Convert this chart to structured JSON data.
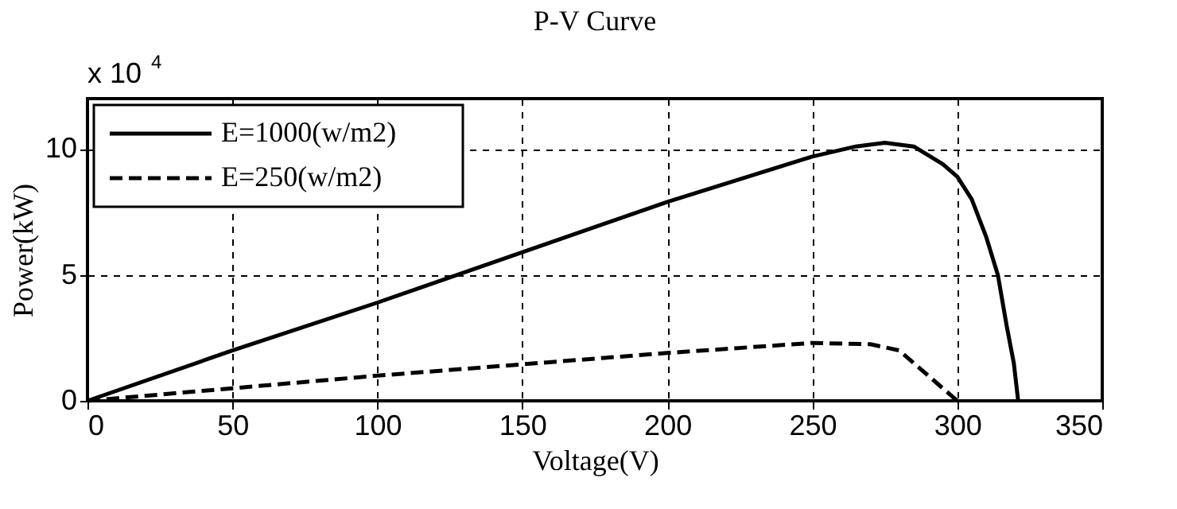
{
  "chart_data": {
    "type": "line",
    "title": "P-V Curve",
    "xlabel": "Voltage(V)",
    "ylabel": "Power(kW)",
    "annotations": [
      "x 10$^{4}$"
    ],
    "series": [
      {
        "name": "E=1000(w/m2)",
        "color": "#000000",
        "line_style": "solid",
        "x": [
          0,
          50,
          100,
          150,
          200,
          250,
          265,
          275,
          285,
          295,
          300,
          305,
          310,
          314,
          317,
          319.5,
          321
        ],
        "values": [
          0,
          2.0,
          3.9,
          5.9,
          7.9,
          9.7,
          10.1,
          10.25,
          10.1,
          9.4,
          8.9,
          8.0,
          6.5,
          5.0,
          3.0,
          1.5,
          0
        ]
      },
      {
        "name": "E=250(w/m2)",
        "color": "#000000",
        "line_style": "dashed",
        "x": [
          0,
          50,
          100,
          150,
          200,
          250,
          270,
          280,
          290,
          295,
          300
        ],
        "values": [
          0,
          0.5,
          1.0,
          1.45,
          1.9,
          2.3,
          2.25,
          2.0,
          1.0,
          0.5,
          0
        ]
      }
    ],
    "xlim": [
      0,
      350
    ],
    "xticks": [
      0,
      50,
      100,
      150,
      200,
      250,
      300,
      350
    ],
    "ylim": [
      0,
      12
    ],
    "yticks": [
      0,
      5,
      10
    ],
    "grid": true,
    "legend": "top left"
  }
}
